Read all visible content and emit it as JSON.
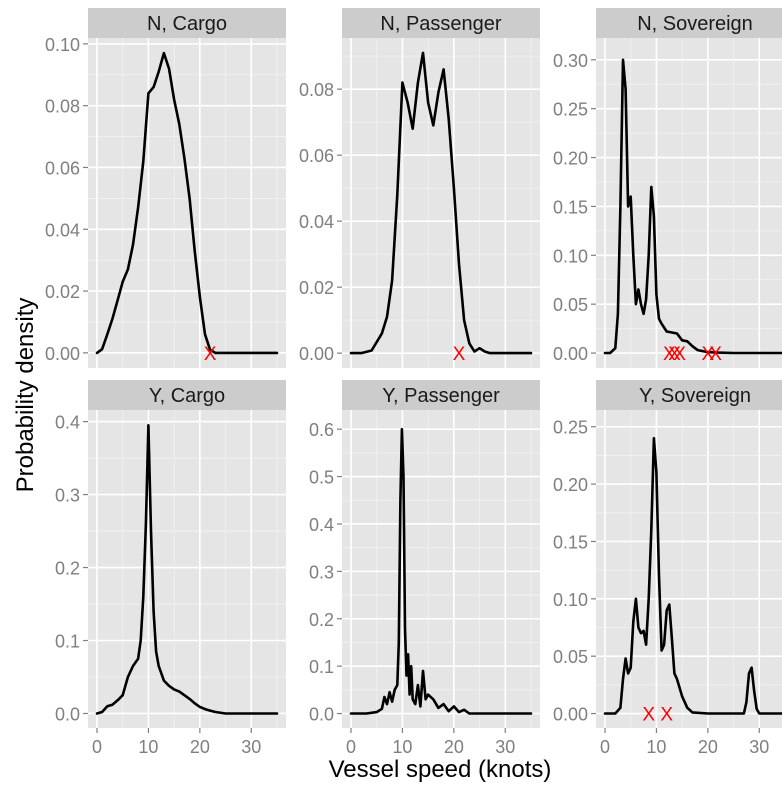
{
  "chart_data": {
    "type": "line",
    "xlabel": "Vessel speed (knots)",
    "ylabel": "Probability density",
    "xlim": [
      -1.75,
      36.75
    ],
    "x_ticks": [
      0,
      10,
      20,
      30
    ],
    "grid": true,
    "line_color": "#000000",
    "marker_color": "#ff0000",
    "marker_label": "X",
    "panel_background": "#e5e5e5",
    "strip_background": "#cccccc",
    "panels": [
      {
        "title": "N, Cargo",
        "ylim": [
          -0.0049,
          0.1019
        ],
        "y_ticks": [
          0,
          0.02,
          0.04,
          0.06,
          0.08,
          0.1
        ],
        "y_tick_labels": [
          "0.00",
          "0.02",
          "0.04",
          "0.06",
          "0.08",
          "0.10"
        ],
        "x": [
          0,
          1,
          2,
          3,
          4,
          5,
          6,
          7,
          8,
          9,
          10,
          11,
          12,
          13,
          14,
          15,
          16,
          17,
          18,
          19,
          20,
          21,
          22,
          23,
          25,
          30,
          35
        ],
        "y": [
          0,
          0.0012,
          0.006,
          0.011,
          0.017,
          0.023,
          0.027,
          0.035,
          0.047,
          0.062,
          0.084,
          0.086,
          0.091,
          0.097,
          0.092,
          0.082,
          0.074,
          0.063,
          0.05,
          0.033,
          0.018,
          0.006,
          0.001,
          0,
          0,
          0,
          0
        ],
        "markers_x": [
          22
        ]
      },
      {
        "title": "N, Passenger",
        "ylim": [
          -0.0045,
          0.0955
        ],
        "y_ticks": [
          0,
          0.02,
          0.04,
          0.06,
          0.08
        ],
        "y_tick_labels": [
          "0.00",
          "0.02",
          "0.04",
          "0.06",
          "0.08"
        ],
        "x": [
          0,
          2,
          4,
          6,
          7,
          8,
          9,
          10,
          11,
          12,
          13,
          14,
          15,
          16,
          17,
          18,
          19,
          20,
          21,
          22,
          23,
          24,
          25,
          26,
          27,
          28,
          30,
          35
        ],
        "y": [
          0,
          0,
          0.0008,
          0.006,
          0.011,
          0.022,
          0.048,
          0.082,
          0.076,
          0.068,
          0.082,
          0.091,
          0.076,
          0.069,
          0.079,
          0.086,
          0.071,
          0.05,
          0.027,
          0.01,
          0.003,
          0.0005,
          0.0015,
          0.0005,
          0,
          0,
          0,
          0
        ],
        "markers_x": [
          21
        ]
      },
      {
        "title": "N, Sovereign",
        "ylim": [
          -0.0153,
          0.3223
        ],
        "y_ticks": [
          0,
          0.05,
          0.1,
          0.15,
          0.2,
          0.25,
          0.3
        ],
        "y_tick_labels": [
          "0.00",
          "0.05",
          "0.10",
          "0.15",
          "0.20",
          "0.25",
          "0.30"
        ],
        "x": [
          0,
          1,
          2,
          2.5,
          3,
          3.5,
          4,
          4.5,
          5,
          5.5,
          6,
          6.5,
          7,
          7.5,
          8,
          8.5,
          9,
          9.5,
          10,
          10.5,
          11,
          12,
          13,
          14,
          15,
          16,
          17,
          18,
          19,
          20,
          22,
          25,
          30,
          35
        ],
        "y": [
          0,
          0,
          0.005,
          0.04,
          0.15,
          0.3,
          0.27,
          0.15,
          0.16,
          0.1,
          0.05,
          0.065,
          0.05,
          0.04,
          0.055,
          0.1,
          0.17,
          0.14,
          0.06,
          0.035,
          0.03,
          0.022,
          0.021,
          0.02,
          0.013,
          0.012,
          0.007,
          0.003,
          0.002,
          0.001,
          0.0005,
          0,
          0,
          0
        ],
        "markers_x": [
          12.5,
          13.5,
          14.5,
          20,
          21.5
        ]
      },
      {
        "title": "Y, Cargo",
        "ylim": [
          -0.0199,
          0.4159
        ],
        "y_ticks": [
          0,
          0.1,
          0.2,
          0.3,
          0.4
        ],
        "y_tick_labels": [
          "0.0",
          "0.1",
          "0.2",
          "0.3",
          "0.4"
        ],
        "x": [
          0,
          1,
          2,
          3,
          4,
          5,
          6,
          7,
          8,
          8.5,
          9,
          9.5,
          10,
          10.5,
          11,
          11.5,
          12,
          13,
          14,
          15,
          16,
          17,
          18,
          19,
          20,
          21,
          22,
          23,
          25,
          30,
          35
        ],
        "y": [
          0,
          0.002,
          0.01,
          0.012,
          0.018,
          0.025,
          0.05,
          0.065,
          0.075,
          0.1,
          0.16,
          0.26,
          0.395,
          0.25,
          0.14,
          0.085,
          0.065,
          0.045,
          0.038,
          0.033,
          0.03,
          0.025,
          0.02,
          0.014,
          0.009,
          0.006,
          0.004,
          0.002,
          0,
          0,
          0
        ],
        "markers_x": []
      },
      {
        "title": "Y, Passenger",
        "ylim": [
          -0.0305,
          0.6405
        ],
        "y_ticks": [
          0,
          0.1,
          0.2,
          0.3,
          0.4,
          0.5,
          0.6
        ],
        "y_tick_labels": [
          "0.0",
          "0.1",
          "0.2",
          "0.3",
          "0.4",
          "0.5",
          "0.6"
        ],
        "x": [
          0,
          3,
          5,
          6,
          6.5,
          7,
          7.5,
          8,
          8.5,
          9,
          9.3,
          9.6,
          9.9,
          10.2,
          10.5,
          10.8,
          11.1,
          11.4,
          11.7,
          12,
          12.5,
          13,
          13.5,
          14,
          14.5,
          15,
          16,
          17,
          18,
          19,
          20,
          21,
          22,
          23,
          25,
          30,
          35
        ],
        "y": [
          0,
          0,
          0.003,
          0.01,
          0.035,
          0.02,
          0.045,
          0.025,
          0.05,
          0.06,
          0.15,
          0.45,
          0.6,
          0.5,
          0.18,
          0.08,
          0.125,
          0.04,
          0.1,
          0.03,
          0.02,
          0.06,
          0.015,
          0.09,
          0.03,
          0.04,
          0.03,
          0.012,
          0.02,
          0.005,
          0.015,
          0.003,
          0.008,
          0,
          0,
          0,
          0
        ],
        "markers_x": []
      },
      {
        "title": "Y, Sovereign",
        "ylim": [
          -0.0126,
          0.2646
        ],
        "y_ticks": [
          0,
          0.05,
          0.1,
          0.15,
          0.2,
          0.25
        ],
        "y_tick_labels": [
          "0.00",
          "0.05",
          "0.10",
          "0.15",
          "0.20",
          "0.25"
        ],
        "x": [
          0,
          2,
          3,
          3.5,
          4,
          4.5,
          5,
          5.5,
          6,
          6.5,
          7,
          7.5,
          8,
          8.5,
          9,
          9.5,
          10,
          10.5,
          11,
          11.5,
          12,
          12.5,
          13,
          13.5,
          14,
          15,
          16,
          17,
          20,
          25,
          27,
          27.5,
          28,
          28.5,
          29,
          29.5,
          30,
          32,
          35
        ],
        "y": [
          0,
          0,
          0.005,
          0.03,
          0.048,
          0.035,
          0.04,
          0.08,
          0.1,
          0.075,
          0.07,
          0.072,
          0.06,
          0.1,
          0.16,
          0.24,
          0.21,
          0.12,
          0.055,
          0.06,
          0.09,
          0.095,
          0.065,
          0.035,
          0.03,
          0.015,
          0.005,
          0.001,
          0,
          0,
          0,
          0.01,
          0.035,
          0.04,
          0.02,
          0.004,
          0,
          0,
          0
        ],
        "markers_x": [
          8.5,
          12
        ]
      }
    ]
  }
}
